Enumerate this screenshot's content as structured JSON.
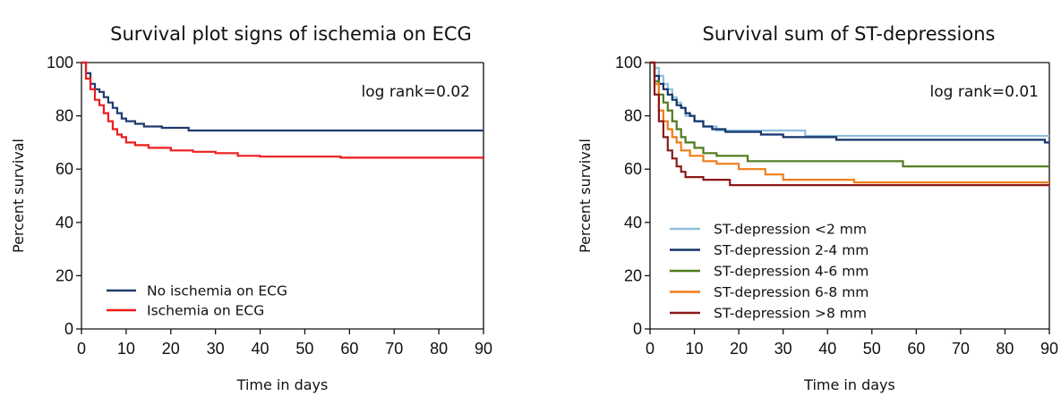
{
  "chart_data": [
    {
      "type": "line",
      "title": "Survival plot signs of ischemia on ECG",
      "xlabel": "Time in days",
      "ylabel": "Percent survival",
      "xlim": [
        0,
        90
      ],
      "ylim": [
        0,
        100
      ],
      "xticks": [
        "0",
        "10",
        "20",
        "30",
        "40",
        "50",
        "60",
        "70",
        "80",
        "90"
      ],
      "yticks": [
        "0",
        "20",
        "40",
        "60",
        "80",
        "100"
      ],
      "annotation": "log rank=0.02",
      "legend_position": "bottom-left",
      "grid": false,
      "series": [
        {
          "name": "No ischemia on ECG",
          "color": "#1f3b6e",
          "x": [
            0,
            1,
            2,
            3,
            4,
            5,
            6,
            7,
            8,
            9,
            10,
            12,
            14,
            18,
            24,
            90
          ],
          "y": [
            100,
            96,
            92,
            90,
            89,
            87,
            85,
            83,
            81,
            79,
            78,
            77,
            76,
            75.5,
            74.5,
            74.5
          ]
        },
        {
          "name": "Ischemia on ECG",
          "color": "#ee1c1c",
          "x": [
            0,
            1,
            2,
            3,
            4,
            5,
            6,
            7,
            8,
            9,
            10,
            12,
            15,
            20,
            25,
            30,
            35,
            40,
            58,
            90
          ],
          "y": [
            100,
            94,
            90,
            86,
            84,
            81,
            78,
            75,
            73,
            72,
            70,
            69,
            68,
            67,
            66.5,
            66,
            65,
            64.7,
            64.3,
            64
          ]
        }
      ]
    },
    {
      "type": "line",
      "title": "Survival sum of ST-depressions",
      "xlabel": "Time in days",
      "ylabel": "Percent survival",
      "xlim": [
        0,
        90
      ],
      "ylim": [
        0,
        100
      ],
      "xticks": [
        "0",
        "10",
        "20",
        "30",
        "40",
        "50",
        "60",
        "70",
        "80",
        "90"
      ],
      "yticks": [
        "0",
        "20",
        "40",
        "60",
        "80",
        "100"
      ],
      "annotation": "log rank=0.01",
      "legend_position": "bottom-left",
      "grid": false,
      "series": [
        {
          "name": "ST-depression <2 mm",
          "color": "#8fc0dc",
          "x": [
            0,
            1,
            2,
            3,
            4,
            5,
            6,
            7,
            8,
            10,
            12,
            15,
            35,
            90
          ],
          "y": [
            100,
            98,
            95,
            92,
            90,
            87,
            85,
            83,
            80,
            78,
            76,
            74.5,
            72.5,
            72.5
          ]
        },
        {
          "name": "ST-depression 2-4 mm",
          "color": "#14336a",
          "x": [
            0,
            1,
            2,
            3,
            4,
            5,
            6,
            7,
            8,
            9,
            10,
            12,
            14,
            17,
            25,
            30,
            42,
            89,
            90
          ],
          "y": [
            100,
            95,
            92,
            90,
            88,
            86,
            84,
            83,
            81,
            80,
            78,
            76,
            75,
            74,
            73,
            72,
            71,
            70,
            70
          ]
        },
        {
          "name": "ST-depression 4-6 mm",
          "color": "#4f7a1c",
          "x": [
            0,
            1,
            2,
            3,
            4,
            5,
            6,
            7,
            8,
            10,
            12,
            15,
            22,
            57,
            90
          ],
          "y": [
            100,
            93,
            88,
            85,
            82,
            78,
            75,
            72,
            70,
            68,
            66,
            65,
            63,
            61,
            61
          ]
        },
        {
          "name": "ST-depression 6-8 mm",
          "color": "#f07d1a",
          "x": [
            0,
            1,
            2,
            3,
            4,
            5,
            6,
            7,
            9,
            12,
            15,
            20,
            26,
            30,
            46,
            90
          ],
          "y": [
            100,
            92,
            82,
            78,
            75,
            72,
            70,
            67,
            65,
            63,
            62,
            60,
            58,
            56,
            55,
            55
          ]
        },
        {
          "name": "ST-depression >8 mm",
          "color": "#8a1a1a",
          "x": [
            0,
            1,
            2,
            3,
            4,
            5,
            6,
            7,
            8,
            12,
            18,
            90
          ],
          "y": [
            100,
            88,
            78,
            72,
            67,
            64,
            61,
            59,
            57,
            56,
            54,
            54
          ]
        }
      ]
    }
  ]
}
